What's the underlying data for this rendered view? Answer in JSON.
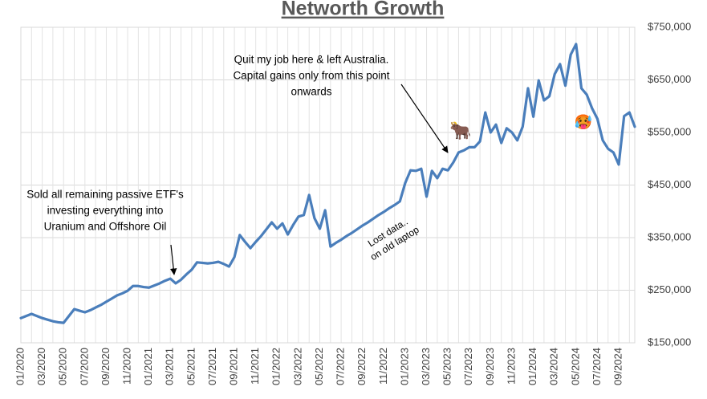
{
  "chart_data": {
    "type": "line",
    "title": "Networth Growth",
    "categories": [
      "01/2020",
      null,
      null,
      null,
      "03/2020",
      null,
      null,
      null,
      "05/2020",
      null,
      null,
      null,
      "07/2020",
      null,
      null,
      null,
      "09/2020",
      null,
      null,
      null,
      "11/2020",
      null,
      null,
      null,
      "01/2021",
      null,
      null,
      null,
      "03/2021",
      null,
      null,
      null,
      "05/2021",
      null,
      null,
      null,
      "07/2021",
      null,
      null,
      null,
      "09/2021",
      null,
      null,
      null,
      "11/2021",
      null,
      null,
      null,
      "01/2022",
      null,
      null,
      null,
      "03/2022",
      null,
      null,
      null,
      "05/2022",
      null,
      null,
      null,
      "07/2022",
      null,
      null,
      null,
      "09/2022",
      null,
      null,
      null,
      "11/2022",
      null,
      null,
      null,
      "01/2023",
      null,
      null,
      null,
      "03/2023",
      null,
      null,
      null,
      "05/2023",
      null,
      null,
      null,
      "07/2023",
      null,
      null,
      null,
      "09/2023",
      null,
      null,
      null,
      "11/2023",
      null,
      null,
      null,
      "01/2024",
      null,
      null,
      null,
      "03/2024",
      null,
      null,
      null,
      "05/2024",
      null,
      null,
      null,
      "07/2024",
      null,
      null,
      null,
      "09/2024",
      null,
      null,
      null
    ],
    "values": [
      197000,
      201000,
      205000,
      201000,
      197000,
      194000,
      191000,
      189000,
      188000,
      201000,
      214000,
      211000,
      208000,
      212000,
      217000,
      222000,
      228000,
      234000,
      240000,
      244000,
      249000,
      258000,
      258000,
      256000,
      255000,
      259000,
      263000,
      268000,
      272000,
      263000,
      270000,
      280000,
      289000,
      303000,
      302000,
      301000,
      302000,
      304000,
      300000,
      295000,
      313000,
      355000,
      342000,
      330000,
      342000,
      353000,
      366000,
      379000,
      367000,
      377000,
      356000,
      374000,
      390000,
      393000,
      431000,
      387000,
      367000,
      402000,
      333000,
      340000,
      346000,
      353000,
      359000,
      366000,
      373000,
      379000,
      386000,
      393000,
      399000,
      406000,
      412000,
      419000,
      454000,
      478000,
      477000,
      481000,
      428000,
      477000,
      463000,
      481000,
      478000,
      493000,
      512000,
      516000,
      522000,
      522000,
      533000,
      588000,
      550000,
      565000,
      530000,
      558000,
      550000,
      535000,
      561000,
      634000,
      580000,
      649000,
      611000,
      619000,
      661000,
      680000,
      639000,
      698000,
      718000,
      634000,
      622000,
      596000,
      576000,
      535000,
      519000,
      512000,
      489000,
      581000,
      588000,
      561000
    ],
    "color": "#4a7ebb",
    "ylim": [
      150000,
      750000
    ],
    "yticks": [
      {
        "value": 150000,
        "label": "$150,000"
      },
      {
        "value": 250000,
        "label": "$250,000"
      },
      {
        "value": 350000,
        "label": "$350,000"
      },
      {
        "value": 450000,
        "label": "$450,000"
      },
      {
        "value": 550000,
        "label": "$550,000"
      },
      {
        "value": 650000,
        "label": "$650,000"
      },
      {
        "value": 750000,
        "label": "$750,000"
      }
    ],
    "grid": true,
    "annotations": [
      [
        "Sold all remaining passive ETF's",
        "investing everything into",
        "Uranium and Offshore Oil"
      ],
      [
        "Quit my job here & left Australia.",
        "Capital gains only from this point",
        "onwards"
      ],
      [
        "Lost data..",
        "on old laptop"
      ],
      "🐂",
      "🥵"
    ]
  }
}
